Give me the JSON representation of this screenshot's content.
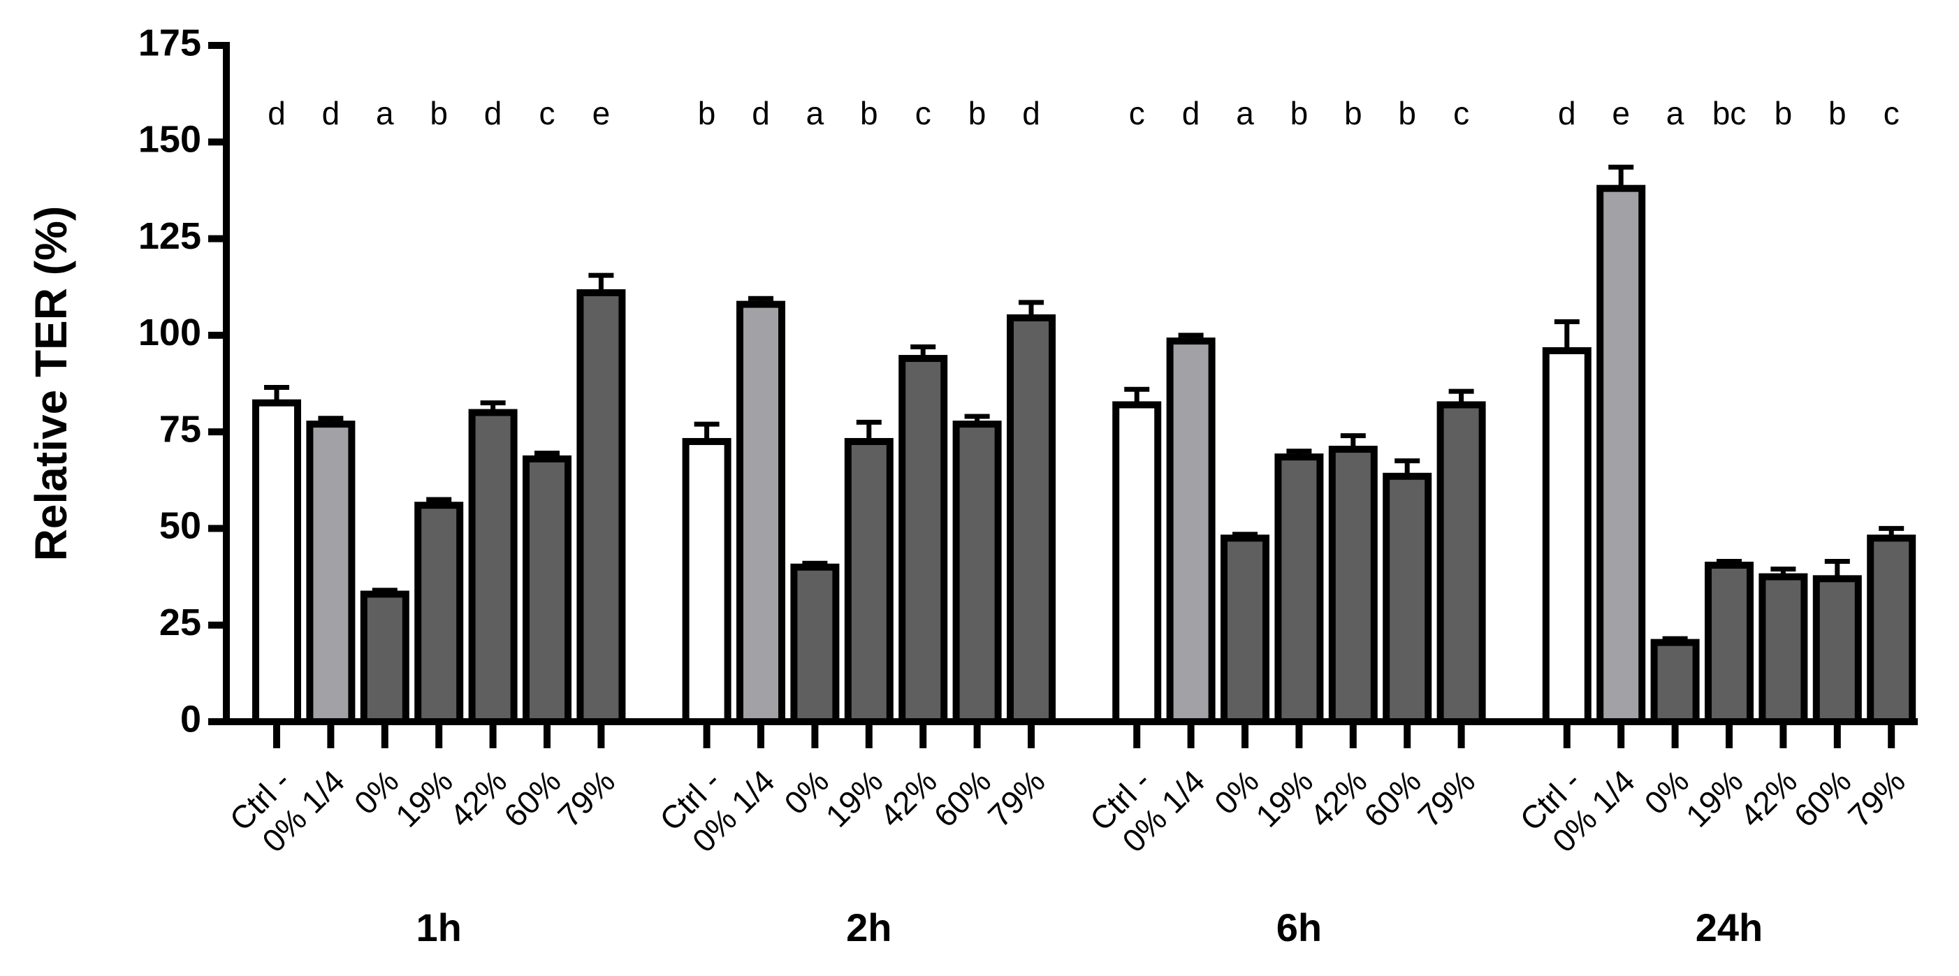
{
  "chart_data": {
    "type": "bar",
    "y_label": "Relative TER (%)",
    "categories": [
      "Ctrl -",
      "0% 1/4",
      "0%",
      "19%",
      "42%",
      "60%",
      "79%"
    ],
    "colors": [
      "#ffffff",
      "#a2a2a6",
      "#5f5f5f",
      "#5f5f5f",
      "#5f5f5f",
      "#5f5f5f",
      "#5f5f5f"
    ],
    "groups": [
      {
        "name": "1h",
        "values": [
          82.5,
          77,
          33,
          56,
          80,
          68,
          111
        ],
        "errors": [
          4,
          1.5,
          1,
          1.5,
          2.5,
          1.5,
          4.5
        ],
        "letters": [
          "d",
          "d",
          "a",
          "b",
          "d",
          "c",
          "e"
        ]
      },
      {
        "name": "2h",
        "values": [
          72.5,
          108,
          40,
          72.5,
          94,
          77,
          104.5
        ],
        "errors": [
          4.5,
          1.5,
          1,
          5,
          3,
          2,
          4
        ],
        "letters": [
          "b",
          "d",
          "a",
          "b",
          "c",
          "b",
          "d"
        ]
      },
      {
        "name": "6h",
        "values": [
          82,
          98.5,
          47.5,
          68.5,
          70.5,
          63.5,
          82
        ],
        "errors": [
          4,
          1.5,
          1,
          1.5,
          3.5,
          4,
          3.5
        ],
        "letters": [
          "c",
          "d",
          "a",
          "b",
          "b",
          "b",
          "c"
        ]
      },
      {
        "name": "24h",
        "values": [
          96,
          138,
          20.5,
          40.5,
          37.5,
          37,
          47.5
        ],
        "errors": [
          7.5,
          5.5,
          1,
          1,
          2,
          4.5,
          2.5
        ],
        "letters": [
          "d",
          "e",
          "a",
          "bc",
          "b",
          "b",
          "c"
        ]
      }
    ],
    "ylim": [
      0,
      175
    ],
    "yticks": [
      0,
      25,
      50,
      75,
      100,
      125,
      150,
      175
    ]
  }
}
